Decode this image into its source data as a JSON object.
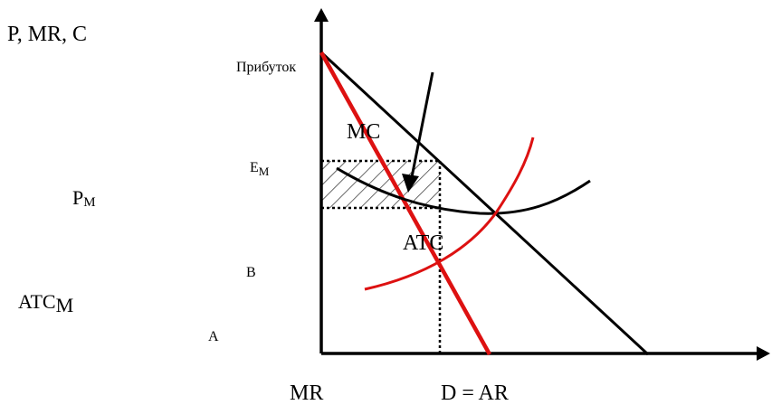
{
  "labels": {
    "y_axis": "P, MR, C",
    "profit": "Прибуток",
    "mc": "MC",
    "em_base": "E",
    "em_sub": "M",
    "pm_base": "P",
    "pm_sub": "M",
    "atc_curve": "ATC",
    "b": "B",
    "atcm_base": "ATC",
    "atcm_sub": "M",
    "a": "A",
    "mr": "MR",
    "demand": "D = AR"
  },
  "colors": {
    "axis": "#000000",
    "demand": "#000000",
    "mr": "#dd1111",
    "mc": "#dd1111",
    "atc": "#000000",
    "guides": "#000000",
    "hatch": "#000000"
  },
  "icons": {
    "axis_arrows": "arrowhead",
    "profit_pointer": "arrow"
  }
}
